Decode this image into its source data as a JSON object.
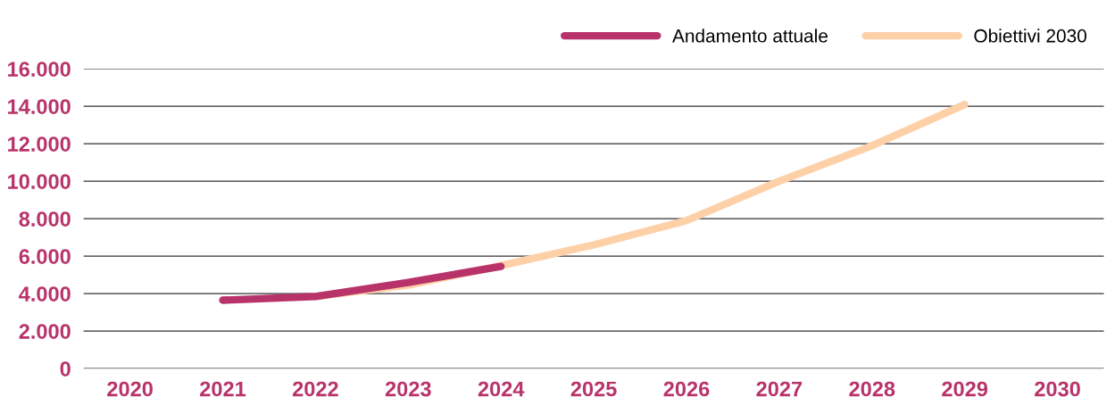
{
  "chart_data": {
    "type": "line",
    "categories": [
      "2020",
      "2021",
      "2022",
      "2023",
      "2024",
      "2025",
      "2026",
      "2027",
      "2028",
      "2029",
      "2030"
    ],
    "series": [
      {
        "name": "Obiettivi 2030",
        "color": "#fdd0a8",
        "values": [
          null,
          null,
          3850,
          4450,
          5500,
          6600,
          7900,
          10000,
          11900,
          14100,
          null
        ]
      },
      {
        "name": "Andamento attuale",
        "color": "#b8336a",
        "values": [
          null,
          3650,
          3850,
          4600,
          5450,
          null,
          null,
          null,
          null,
          null,
          null
        ]
      }
    ],
    "ylim": [
      0,
      16000
    ],
    "yticks": [
      {
        "value": 0,
        "label": "0"
      },
      {
        "value": 2000,
        "label": "2.000"
      },
      {
        "value": 4000,
        "label": "4.000"
      },
      {
        "value": 6000,
        "label": "6.000"
      },
      {
        "value": 8000,
        "label": "8.000"
      },
      {
        "value": 10000,
        "label": "10.000"
      },
      {
        "value": 12000,
        "label": "12.000"
      },
      {
        "value": 14000,
        "label": "14.000"
      },
      {
        "value": 16000,
        "label": "16.000"
      }
    ],
    "grid": "y",
    "legend": "top right",
    "marker": "none",
    "line_style": "solid"
  }
}
